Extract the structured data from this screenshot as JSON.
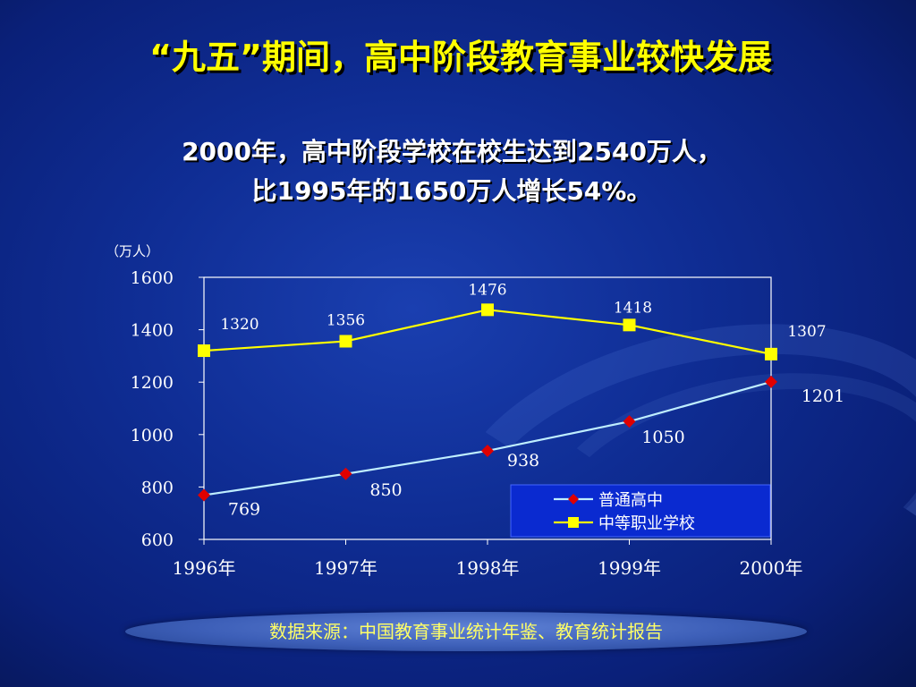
{
  "slide": {
    "title": "“九五”期间，高中阶段教育事业较快发展",
    "subtitle_line1": "2000年，高中阶段学校在校生达到2540万人，",
    "subtitle_line2": "比1995年的1650万人增长54%。",
    "source": "数据来源：中国教育事业统计年鉴、教育统计报告"
  },
  "colors": {
    "series_general_line": "#bfeeff",
    "series_general_marker": "#e00000",
    "series_vocational_line": "#ffff00",
    "series_vocational_marker": "#ffff00",
    "legend_bg": "#0a2ad0",
    "axis_text": "#ffffff"
  },
  "chart_data": {
    "type": "line",
    "unit_label": "（万人）",
    "categories": [
      "1996年",
      "1997年",
      "1998年",
      "1999年",
      "2000年"
    ],
    "ylim": [
      600,
      1600
    ],
    "yticks": [
      600,
      800,
      1000,
      1200,
      1400,
      1600
    ],
    "grid": false,
    "legend_position": "bottom-right",
    "series": [
      {
        "name": "普通高中",
        "marker": "diamond",
        "values": [
          769,
          850,
          938,
          1050,
          1201
        ]
      },
      {
        "name": "中等职业学校",
        "marker": "square",
        "values": [
          1320,
          1356,
          1476,
          1418,
          1307
        ]
      }
    ]
  }
}
